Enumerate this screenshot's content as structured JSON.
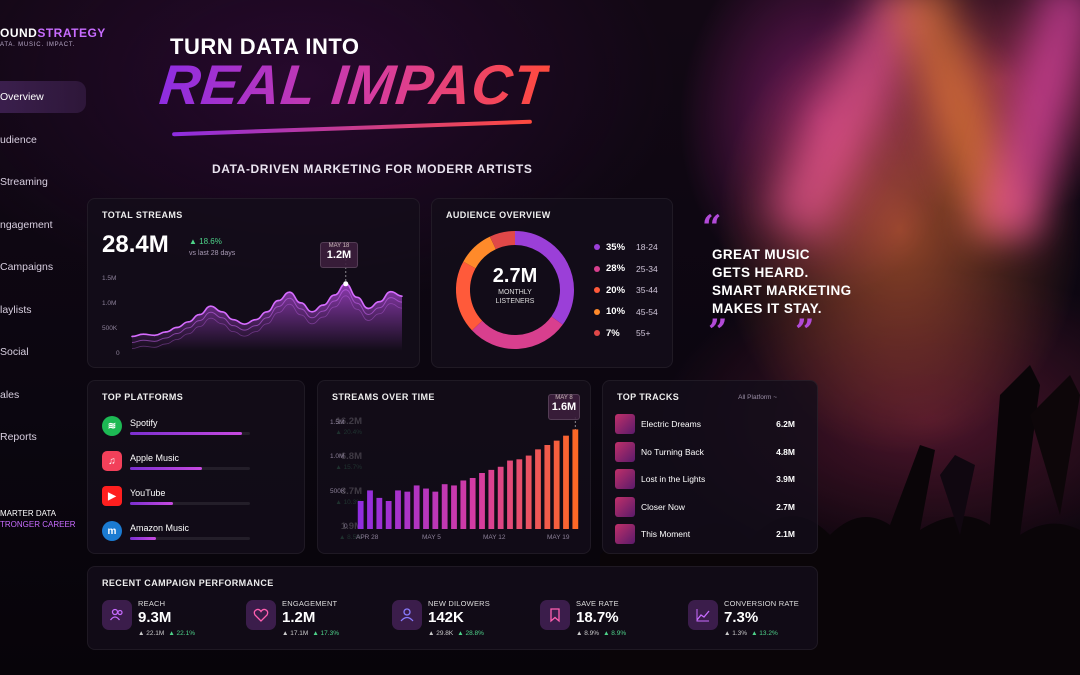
{
  "brand": {
    "name_prefix": "OUND",
    "name_accent": "STRATEGY",
    "tagline": "ATA. MUSIC. IMPACT."
  },
  "sidebar": {
    "items": [
      {
        "label": "Overview",
        "active": true
      },
      {
        "label": "udience"
      },
      {
        "label": "Streaming"
      },
      {
        "label": "ngagement"
      },
      {
        "label": "Campaigns"
      },
      {
        "label": "laylists"
      },
      {
        "label": "Social"
      },
      {
        "label": "ales"
      },
      {
        "label": "Reports"
      }
    ],
    "footer_line1": "MARTER DATA",
    "footer_line2": "TRONGER CAREER"
  },
  "hero": {
    "top": "TURN DATA INTO",
    "big": "REAL IMPACT",
    "sub": "DATA-DRIVEN MARKETING FOR MODERR ARTISTS"
  },
  "total_streams": {
    "title": "TOTAL STREAMS",
    "value": "28.4M",
    "change": "▲ 18.6%",
    "sub": "vs last 28 days",
    "peak_date": "MAY 18",
    "peak_value": "1.2M",
    "y_ticks": [
      "1.5M",
      "1.0M",
      "500K",
      "0"
    ]
  },
  "audience": {
    "title": "AUDIENCE OVERVIEW",
    "center_value": "2.7M",
    "center_label_1": "MONTHLY",
    "center_label_2": "LISTENERS",
    "groups": [
      {
        "pct": "35%",
        "range": "18-24",
        "color": "#9b3fd8",
        "value": 35
      },
      {
        "pct": "28%",
        "range": "25-34",
        "color": "#d83f8e",
        "value": 28
      },
      {
        "pct": "20%",
        "range": "35-44",
        "color": "#ff5a3a",
        "value": 20
      },
      {
        "pct": "10%",
        "range": "45-54",
        "color": "#ff8a2a",
        "value": 10
      },
      {
        "pct": "7%",
        "range": "55+",
        "color": "#e04848",
        "value": 7
      }
    ]
  },
  "quote": {
    "text": "GREAT MUSIC\nGETS HEARD.\nSMART MARKETING\nMAKES IT STAY.",
    "open": "“",
    "close": "”"
  },
  "platforms": {
    "title": "TOP PLATFORMS",
    "items": [
      {
        "name": "Spotify",
        "value": "16.2M",
        "change": "▲ 20.4%",
        "share": 0.93,
        "icon": "spotify-icon",
        "color": "#1db954",
        "glyph": "≋"
      },
      {
        "name": "Apple Music",
        "value": "6.8M",
        "change": "▲ 15.7%",
        "share": 0.6,
        "icon": "apple-music-icon",
        "color": "#f2405a",
        "glyph": "♫"
      },
      {
        "name": "YouTube",
        "value": "3.7M",
        "change": "▲ 10.3%",
        "share": 0.36,
        "icon": "youtube-icon",
        "color": "#ff1f1f",
        "glyph": "▶"
      },
      {
        "name": "Amazon Music",
        "value": "1.9M",
        "change": "▲ 8.5%",
        "share": 0.22,
        "icon": "amazon-music-icon",
        "color": "#1b7bd1",
        "glyph": "m"
      }
    ]
  },
  "streams_over_time": {
    "title": "STREAMS OVER TIME",
    "peak_date": "MAY 8",
    "peak_value": "1.6M",
    "y_ticks": [
      "1.5M",
      "1.0M",
      "500K",
      "0"
    ],
    "x_ticks": [
      "APR 28",
      "MAY 5",
      "MAY 12",
      "MAY 19"
    ]
  },
  "top_tracks": {
    "title": "TOP TRACKS",
    "filter": "All Platform ~",
    "items": [
      {
        "name": "Electric Dreams",
        "value": "6.2M"
      },
      {
        "name": "No Turning Back",
        "value": "4.8M"
      },
      {
        "name": "Lost in the Lights",
        "value": "3.9M"
      },
      {
        "name": "Closer Now",
        "value": "2.7M"
      },
      {
        "name": "This Moment",
        "value": "2.1M"
      }
    ]
  },
  "campaign": {
    "title": "RECENT CAMPAIGN PERFORMANCE",
    "kpis": [
      {
        "label": "REACH",
        "value": "9.3M",
        "a": "▲ 22.1M",
        "b": "▲ 22.1%",
        "icon": "users-icon"
      },
      {
        "label": "ENGAGEMENT",
        "value": "1.2M",
        "a": "▲ 17.1M",
        "b": "▲ 17.3%",
        "icon": "heart-icon"
      },
      {
        "label": "NEW DILOWERS",
        "value": "142K",
        "a": "▲ 29.8K",
        "b": "▲ 28.8%",
        "icon": "user-icon"
      },
      {
        "label": "SAVE RATE",
        "value": "18.7%",
        "a": "▲ 8.9%",
        "b": "▲ 8.9%",
        "icon": "bookmark-icon"
      },
      {
        "label": "CONVERSION RATE",
        "value": "7.3%",
        "a": "▲ 1.3%",
        "b": "▲ 13.2%",
        "icon": "trend-icon"
      }
    ]
  },
  "chart_data": [
    {
      "type": "area",
      "title": "TOTAL STREAMS",
      "ylim": [
        0,
        1500000
      ],
      "y_ticks": [
        "1.5M",
        "1.0M",
        "500K",
        "0"
      ],
      "values": [
        260000,
        300000,
        280000,
        340000,
        420000,
        520000,
        650000,
        800000,
        700000,
        560000,
        480000,
        560000,
        700000,
        900000,
        1050000,
        860000,
        700000,
        820000,
        1000000,
        1200000,
        960000,
        760000,
        880000,
        1060000,
        980000
      ],
      "annotation": {
        "label": "MAY 18",
        "value": "1.2M"
      }
    },
    {
      "type": "bar",
      "title": "STREAMS OVER TIME",
      "ylim": [
        0,
        1800000
      ],
      "y_ticks": [
        "1.5M",
        "1.0M",
        "500K",
        "0"
      ],
      "x_ticks": [
        "APR 28",
        "MAY 5",
        "MAY 12",
        "MAY 19"
      ],
      "values": [
        450000,
        620000,
        500000,
        450000,
        620000,
        600000,
        700000,
        650000,
        600000,
        720000,
        700000,
        780000,
        820000,
        900000,
        950000,
        1000000,
        1100000,
        1120000,
        1180000,
        1280000,
        1350000,
        1420000,
        1500000,
        1600000
      ],
      "annotation": {
        "label": "MAY 8",
        "value": "1.6M"
      }
    }
  ]
}
